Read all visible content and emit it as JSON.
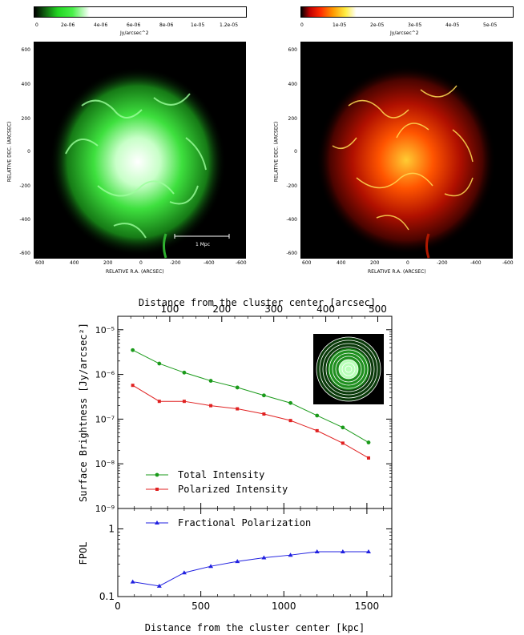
{
  "top_panels": {
    "left": {
      "colorbar_ticks": [
        "0",
        "2e-06",
        "4e-06",
        "6e-06",
        "8e-06",
        "1e-05",
        "1.2e-05"
      ],
      "colorbar_unit": "Jy/arcsec^2",
      "y_ticks": [
        "600",
        "400",
        "200",
        "0",
        "-200",
        "-400",
        "-600"
      ],
      "x_ticks": [
        "600",
        "400",
        "200",
        "0",
        "-200",
        "-400",
        "-600"
      ],
      "xlabel": "RELATIVE R.A. (ARCSEC)",
      "ylabel": "RELATIVE DEC. (ARCSEC)",
      "scalebar_label": "1 Mpc",
      "colormap": "green",
      "accent": "#22e022"
    },
    "right": {
      "colorbar_ticks": [
        "0",
        "1e-05",
        "2e-05",
        "3e-05",
        "4e-05",
        "5e-05"
      ],
      "colorbar_unit": "Jy/arcsec^2",
      "y_ticks": [
        "600",
        "400",
        "200",
        "0",
        "-200",
        "-400",
        "-600"
      ],
      "x_ticks": [
        "600",
        "400",
        "200",
        "0",
        "-200",
        "-400",
        "-600"
      ],
      "xlabel": "RELATIVE R.A. (ARCSEC)",
      "ylabel": "RELATIVE DEC. (ARCSEC)",
      "colormap": "red-yellow",
      "accent": "#ff3300"
    }
  },
  "chart_data": [
    {
      "type": "line",
      "log_y": true,
      "top_xlabel": "Distance from the cluster center [arcsec]",
      "top_x_ticks": [
        "100",
        "200",
        "300",
        "400",
        "500"
      ],
      "top_xlim": [
        0,
        527
      ],
      "ylabel": "Surface Brightness [Jy/arcsec²]",
      "y_ticks": [
        "10⁻⁵",
        "10⁻⁶",
        "10⁻⁷",
        "10⁻⁸",
        "10⁻⁹"
      ],
      "ylim": [
        1e-09,
        2e-05
      ],
      "xlim": [
        0,
        1650
      ],
      "x": [
        90,
        250,
        400,
        560,
        720,
        880,
        1040,
        1200,
        1355,
        1510
      ],
      "series": [
        {
          "name": "Total Intensity",
          "color": "#1a9a1a",
          "marker": "circle",
          "values": [
            3.5e-06,
            1.75e-06,
            1.1e-06,
            7.2e-07,
            5.1e-07,
            3.4e-07,
            2.3e-07,
            1.2e-07,
            6.5e-08,
            3e-08
          ]
        },
        {
          "name": "Polarized Intensity",
          "color": "#e02020",
          "marker": "square",
          "values": [
            5.7e-07,
            2.5e-07,
            2.5e-07,
            2e-07,
            1.7e-07,
            1.3e-07,
            9.3e-08,
            5.5e-08,
            2.9e-08,
            1.35e-08
          ]
        }
      ],
      "legend_position": "bottom-left"
    },
    {
      "type": "line",
      "log_y": true,
      "ylabel": "FPOL",
      "y_ticks": [
        "1",
        "0.1"
      ],
      "ylim": [
        0.1,
        2
      ],
      "xlabel": "Distance from the cluster center [kpc]",
      "x_ticks": [
        "0",
        "500",
        "1000",
        "1500"
      ],
      "xlim": [
        0,
        1650
      ],
      "x": [
        90,
        250,
        400,
        560,
        720,
        880,
        1040,
        1200,
        1355,
        1510
      ],
      "series": [
        {
          "name": "Fractional Polarization",
          "color": "#2020e0",
          "marker": "triangle",
          "values": [
            0.165,
            0.143,
            0.225,
            0.28,
            0.33,
            0.375,
            0.41,
            0.46,
            0.46,
            0.46
          ]
        }
      ],
      "legend_position": "top-left"
    }
  ]
}
